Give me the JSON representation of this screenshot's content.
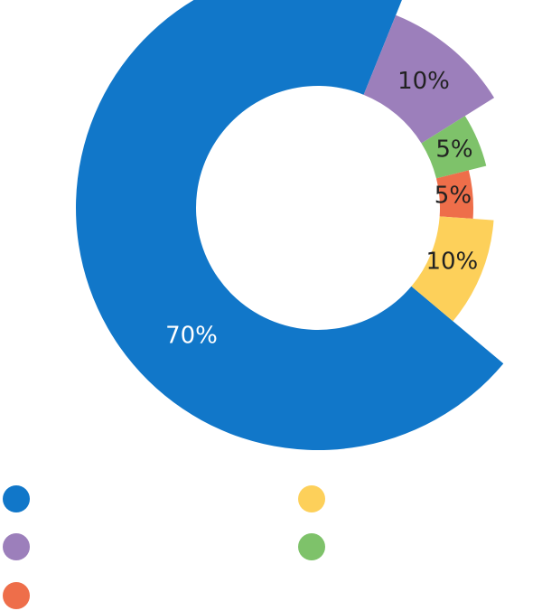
{
  "chart_data": {
    "type": "pie",
    "variant": "donut-exploded",
    "title": "",
    "slices": [
      {
        "label": "",
        "value": 70,
        "display": "70%",
        "color": "#1177c9",
        "label_color": "#ffffff"
      },
      {
        "label": "",
        "value": 10,
        "display": "10%",
        "color": "#9c7fbb",
        "label_color": "#222222"
      },
      {
        "label": "",
        "value": 5,
        "display": "5%",
        "color": "#7ec26a",
        "label_color": "#222222"
      },
      {
        "label": "",
        "value": 5,
        "display": "5%",
        "color": "#ee6e4a",
        "label_color": "#222222"
      },
      {
        "label": "",
        "value": 10,
        "display": "10%",
        "color": "#fdd05a",
        "label_color": "#222222"
      }
    ],
    "legend_position": "bottom"
  }
}
